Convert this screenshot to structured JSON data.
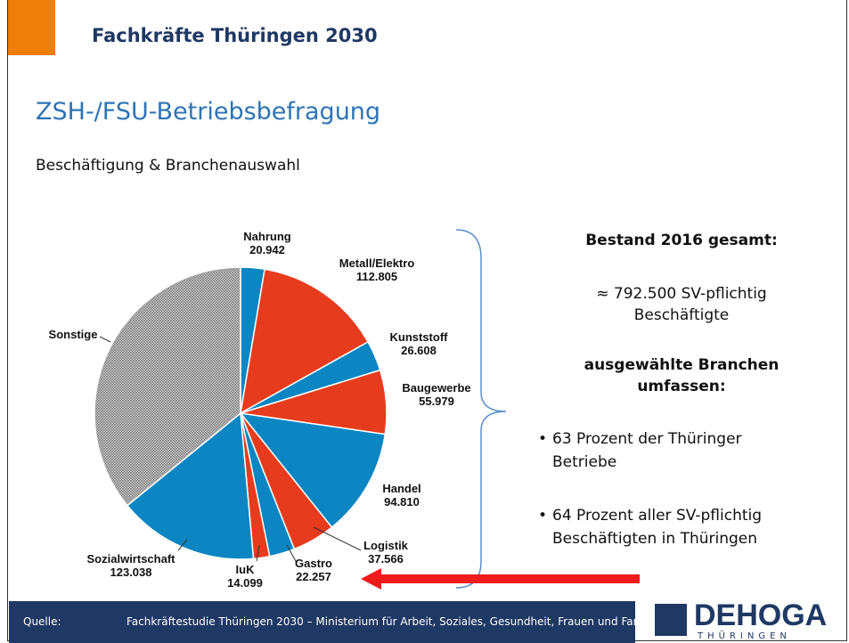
{
  "header": {
    "title": "Fachkräfte Thüringen 2030"
  },
  "slide": {
    "title": "ZSH-/FSU-Betriebsbefragung",
    "subtitle": "Beschäftigung & Branchenauswahl"
  },
  "chart_data": {
    "type": "pie",
    "categories": [
      "Nahrung",
      "Metall/Elektro",
      "Kunststoff",
      "Baugewerbe",
      "Handel",
      "Logistik",
      "Gastro",
      "IuK",
      "Sozialwirtschaft",
      "Sonstige"
    ],
    "values": [
      20942,
      112805,
      26608,
      55979,
      94810,
      37566,
      22257,
      14099,
      123038,
      284396
    ],
    "value_labels": [
      "20.942",
      "112.805",
      "26.608",
      "55.979",
      "94.810",
      "37.566",
      "22.257",
      "14.099",
      "123.038",
      null
    ],
    "colors": [
      "#0b86c3",
      "#e63b1c",
      "#0b86c3",
      "#e63b1c",
      "#0b86c3",
      "#e63b1c",
      "#0b86c3",
      "#e63b1c",
      "#0b86c3",
      "#a9a9a9"
    ]
  },
  "info": {
    "heading": "Bestand 2016 gesamt:",
    "total_lines": [
      "≈ 792.500 SV-pflichtig",
      "Beschäftigte"
    ],
    "selected_lines": [
      "ausgewählte Branchen",
      "umfassen:"
    ],
    "bullets": [
      [
        "63 Prozent der Thüringer",
        "Betriebe"
      ],
      [
        "64 Prozent aller SV-pflichtig",
        "Beschäftigten in Thüringen"
      ]
    ]
  },
  "footer": {
    "source_label": "Quelle:",
    "source": "Fachkräftestudie Thüringen 2030 – Ministerium für Arbeit, Soziales, Gesundheit, Frauen und Familie"
  },
  "logo": {
    "name": "DEHOGA",
    "sub": "THÜRINGEN"
  }
}
